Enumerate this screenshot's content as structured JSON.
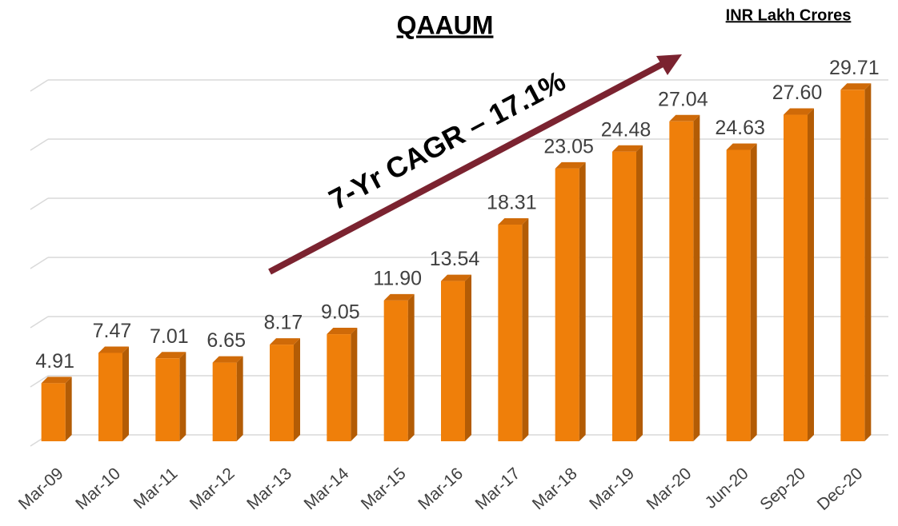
{
  "chart_data": {
    "type": "bar3d",
    "title": "QAAUM",
    "unit_label": "INR Lakh Crores",
    "annotation": "7-Yr CAGR – 17.1%",
    "categories": [
      "Mar-09",
      "Mar-10",
      "Mar-11",
      "Mar-12",
      "Mar-13",
      "Mar-14",
      "Mar-15",
      "Mar-16",
      "Mar-17",
      "Mar-18",
      "Mar-19",
      "Mar-20",
      "Jun-20",
      "Sep-20",
      "Dec-20"
    ],
    "values": [
      4.91,
      7.47,
      7.01,
      6.65,
      8.17,
      9.05,
      11.9,
      13.54,
      18.31,
      23.05,
      24.48,
      27.04,
      24.63,
      27.6,
      29.71
    ],
    "value_labels": [
      "4.91",
      "7.47",
      "7.01",
      "6.65",
      "8.17",
      "9.05",
      "11.90",
      "13.54",
      "18.31",
      "23.05",
      "24.48",
      "27.04",
      "24.63",
      "27.60",
      "29.71"
    ],
    "color": "#ef7f0a",
    "ylim": [
      0,
      30
    ],
    "yticks": [
      0,
      5,
      10,
      15,
      20,
      25,
      30
    ],
    "grid": true
  }
}
